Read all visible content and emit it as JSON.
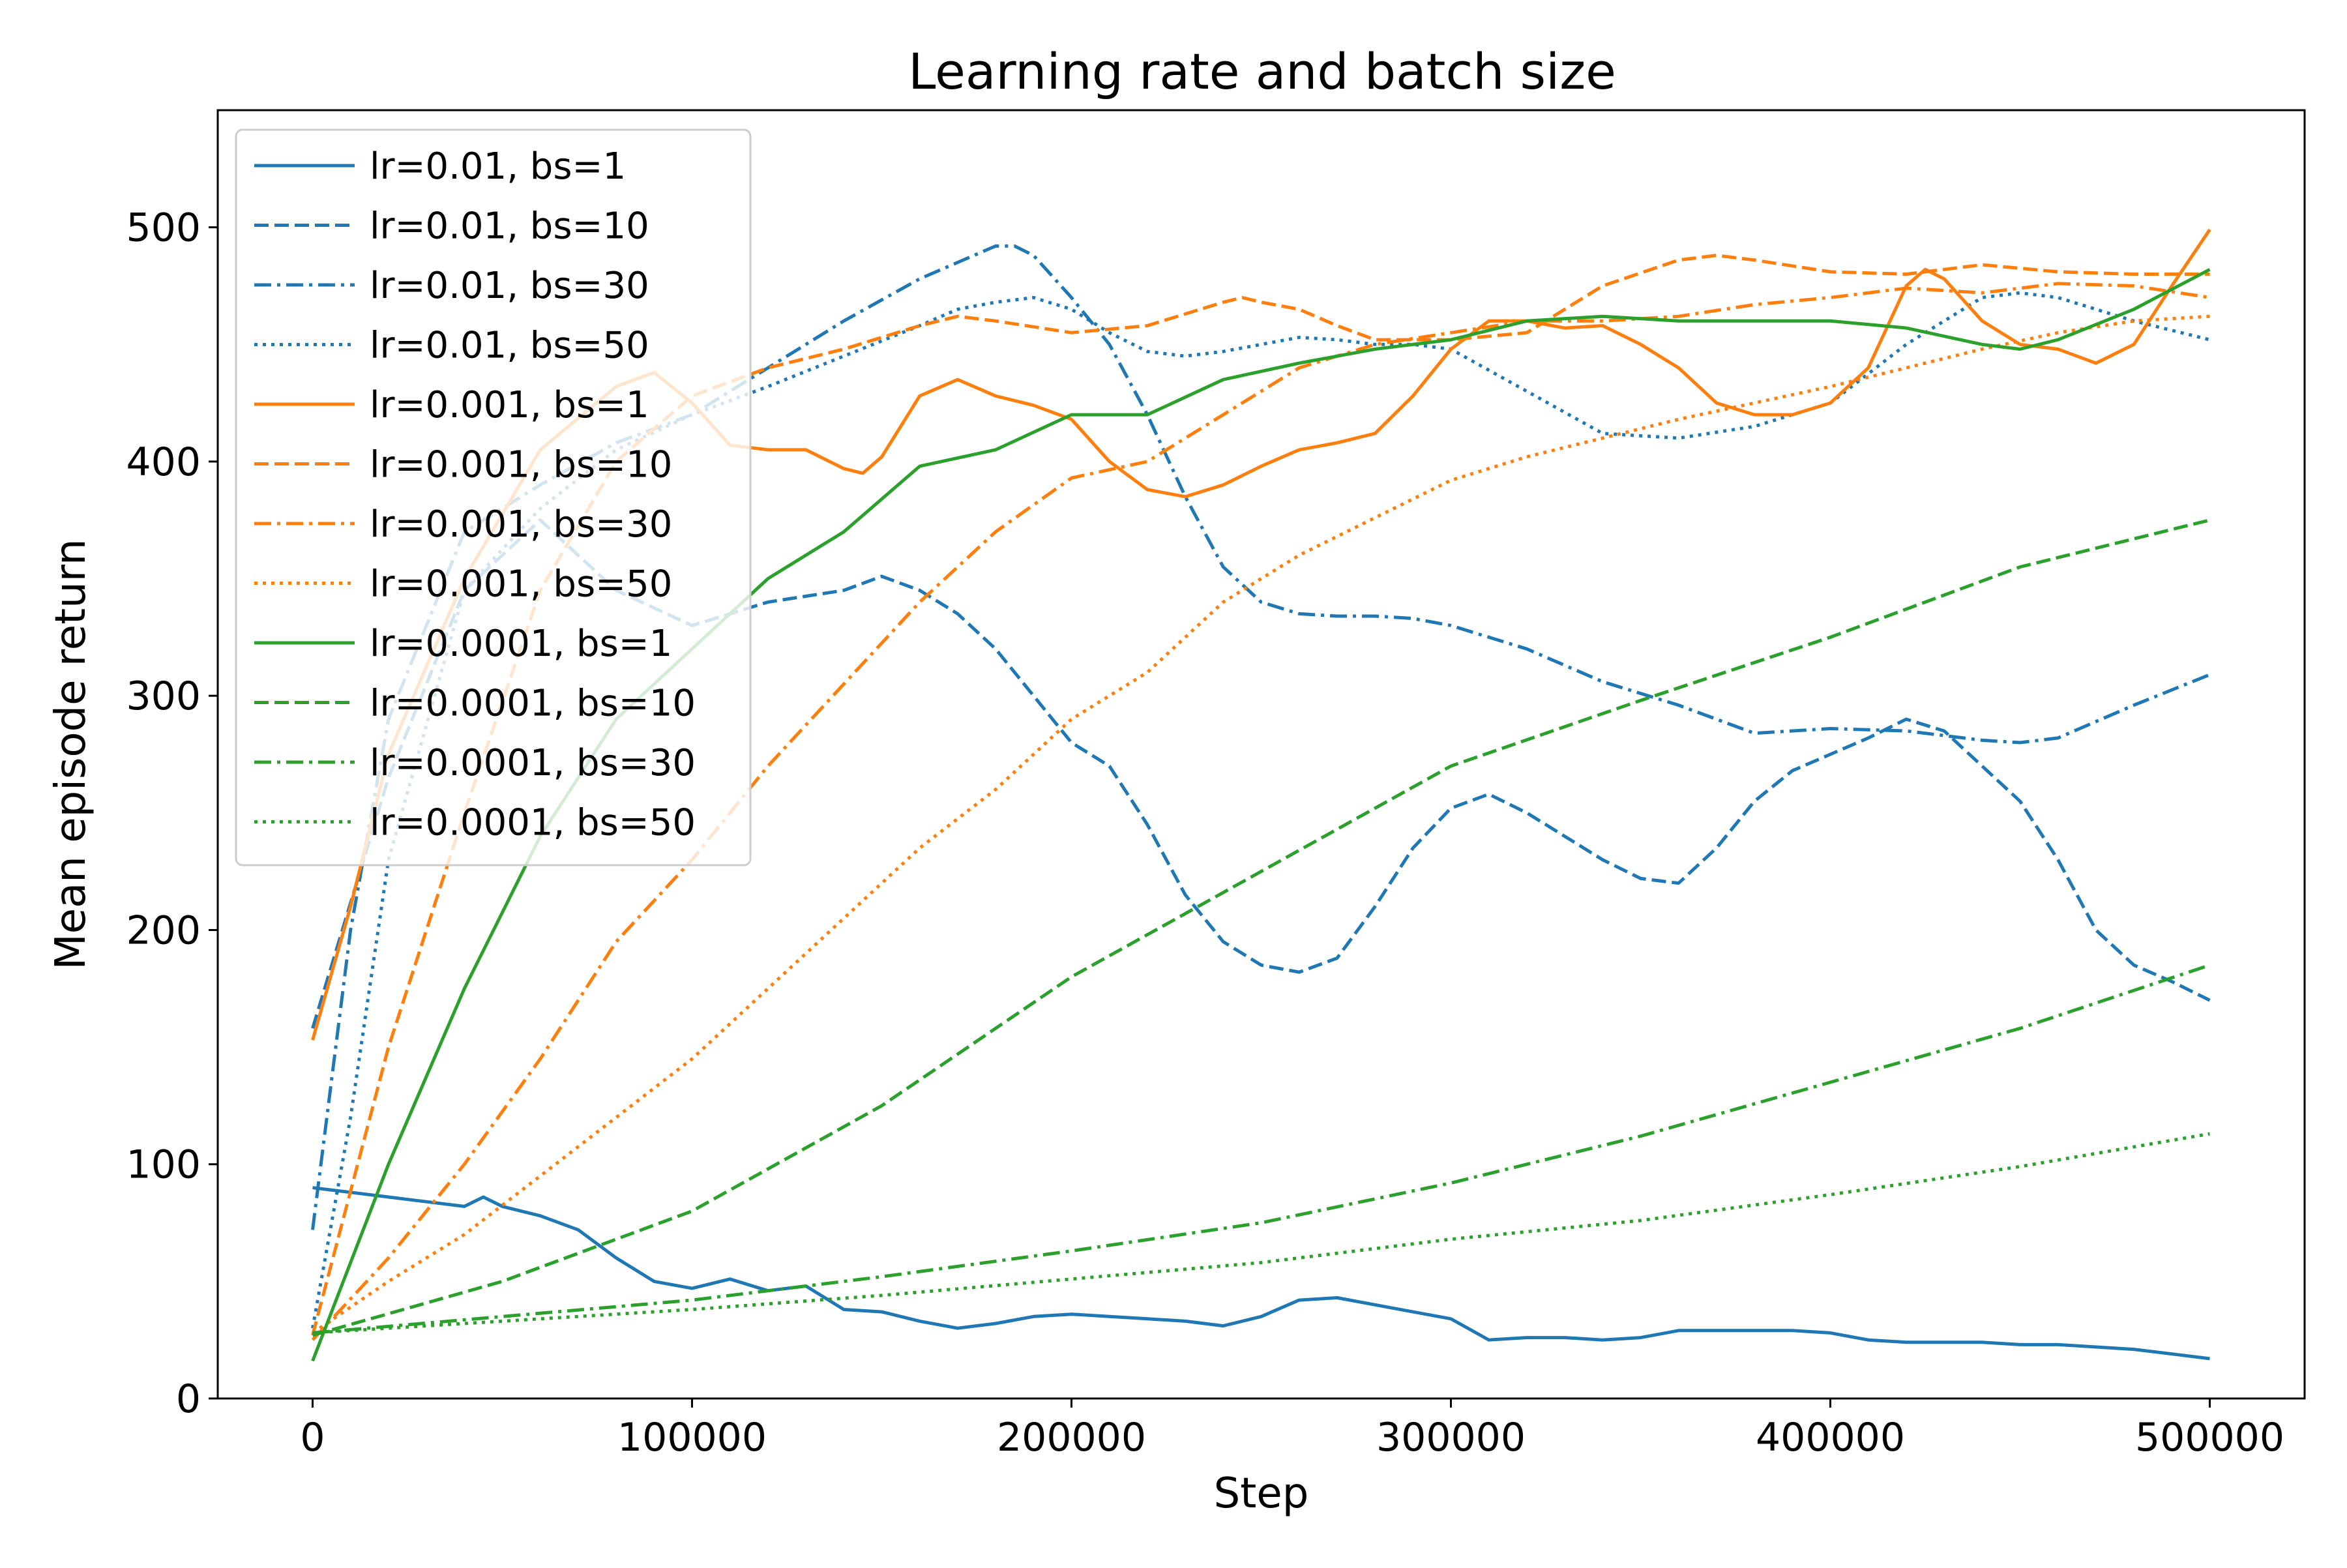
{
  "chart_data": {
    "type": "line",
    "title": "Learning rate and batch size",
    "xlabel": "Step",
    "ylabel": "Mean episode return",
    "xlim": [
      -25000,
      525000
    ],
    "ylim": [
      0,
      550
    ],
    "xticks": [
      0,
      100000,
      200000,
      300000,
      400000,
      500000
    ],
    "yticks": [
      0,
      100,
      200,
      300,
      400,
      500
    ],
    "xtick_labels": [
      "0",
      "100000",
      "200000",
      "300000",
      "400000",
      "500000"
    ],
    "ytick_labels": [
      "0",
      "100",
      "200",
      "300",
      "400",
      "500"
    ],
    "grid": false,
    "legend_position": "upper left",
    "series": [
      {
        "name": "lr=0.01, bs=1",
        "color": "#1f77b4",
        "style": "solid",
        "x": [
          0,
          10000,
          20000,
          30000,
          40000,
          45000,
          50000,
          60000,
          70000,
          80000,
          90000,
          100000,
          110000,
          120000,
          130000,
          140000,
          150000,
          160000,
          170000,
          180000,
          190000,
          200000,
          210000,
          220000,
          230000,
          240000,
          250000,
          260000,
          270000,
          280000,
          290000,
          300000,
          310000,
          320000,
          330000,
          340000,
          350000,
          360000,
          370000,
          380000,
          390000,
          400000,
          410000,
          420000,
          430000,
          440000,
          450000,
          460000,
          470000,
          480000,
          490000,
          500000
        ],
        "y": [
          90,
          88,
          86,
          84,
          82,
          86,
          82,
          78,
          72,
          60,
          50,
          47,
          51,
          46,
          48,
          38,
          37,
          33,
          30,
          32,
          35,
          36,
          35,
          34,
          33,
          31,
          35,
          42,
          43,
          40,
          37,
          34,
          25,
          26,
          26,
          25,
          26,
          29,
          29,
          29,
          29,
          28,
          25,
          24,
          24,
          24,
          23,
          23,
          22,
          21,
          19,
          17
        ]
      },
      {
        "name": "lr=0.01, bs=10",
        "color": "#1f77b4",
        "style": "dashed",
        "x": [
          0,
          20000,
          40000,
          60000,
          80000,
          100000,
          120000,
          140000,
          150000,
          160000,
          170000,
          180000,
          190000,
          200000,
          210000,
          220000,
          230000,
          240000,
          250000,
          260000,
          270000,
          280000,
          290000,
          300000,
          310000,
          320000,
          330000,
          340000,
          350000,
          360000,
          370000,
          380000,
          390000,
          400000,
          410000,
          420000,
          430000,
          440000,
          450000,
          460000,
          470000,
          480000,
          490000,
          500000
        ],
        "y": [
          158,
          265,
          345,
          375,
          345,
          330,
          340,
          345,
          351,
          345,
          335,
          320,
          300,
          280,
          270,
          245,
          215,
          195,
          185,
          182,
          188,
          210,
          235,
          252,
          258,
          250,
          240,
          230,
          222,
          220,
          235,
          255,
          268,
          275,
          282,
          290,
          285,
          270,
          255,
          230,
          200,
          185,
          178,
          170
        ]
      },
      {
        "name": "lr=0.01, bs=30",
        "color": "#1f77b4",
        "style": "dashdot",
        "x": [
          0,
          10000,
          20000,
          40000,
          60000,
          80000,
          100000,
          120000,
          140000,
          160000,
          170000,
          180000,
          185000,
          190000,
          200000,
          210000,
          220000,
          230000,
          240000,
          250000,
          260000,
          270000,
          280000,
          290000,
          300000,
          320000,
          340000,
          360000,
          380000,
          400000,
          420000,
          440000,
          450000,
          460000,
          480000,
          500000
        ],
        "y": [
          72,
          200,
          290,
          370,
          390,
          408,
          420,
          440,
          460,
          478,
          485,
          492,
          492,
          488,
          470,
          450,
          420,
          385,
          355,
          340,
          335,
          334,
          334,
          333,
          330,
          320,
          306,
          296,
          284,
          286,
          285,
          281,
          280,
          282,
          296,
          309
        ]
      },
      {
        "name": "lr=0.01, bs=50",
        "color": "#1f77b4",
        "style": "dotted",
        "x": [
          0,
          10000,
          20000,
          40000,
          60000,
          80000,
          100000,
          120000,
          140000,
          160000,
          170000,
          180000,
          190000,
          200000,
          210000,
          220000,
          230000,
          240000,
          250000,
          260000,
          270000,
          280000,
          290000,
          300000,
          320000,
          340000,
          360000,
          380000,
          400000,
          420000,
          440000,
          450000,
          460000,
          480000,
          500000
        ],
        "y": [
          30,
          120,
          230,
          345,
          380,
          405,
          420,
          432,
          445,
          458,
          465,
          468,
          470,
          465,
          455,
          447,
          445,
          447,
          450,
          453,
          452,
          450,
          450,
          448,
          430,
          412,
          410,
          415,
          425,
          450,
          470,
          472,
          470,
          460,
          452
        ]
      },
      {
        "name": "lr=0.001, bs=1",
        "color": "#ff7f0e",
        "style": "solid",
        "x": [
          0,
          10000,
          20000,
          40000,
          60000,
          80000,
          90000,
          100000,
          110000,
          120000,
          130000,
          140000,
          145000,
          150000,
          160000,
          170000,
          180000,
          190000,
          200000,
          210000,
          220000,
          230000,
          240000,
          250000,
          260000,
          270000,
          280000,
          290000,
          300000,
          310000,
          320000,
          330000,
          340000,
          350000,
          360000,
          370000,
          380000,
          390000,
          400000,
          410000,
          420000,
          425000,
          430000,
          440000,
          450000,
          460000,
          470000,
          480000,
          490000,
          500000
        ],
        "y": [
          153,
          210,
          275,
          350,
          405,
          432,
          438,
          425,
          407,
          405,
          405,
          397,
          395,
          402,
          428,
          435,
          428,
          424,
          418,
          400,
          388,
          385,
          390,
          398,
          405,
          408,
          412,
          428,
          448,
          460,
          460,
          457,
          458,
          450,
          440,
          425,
          420,
          420,
          425,
          440,
          475,
          482,
          478,
          460,
          450,
          448,
          442,
          450,
          475,
          499
        ]
      },
      {
        "name": "lr=0.001, bs=10",
        "color": "#ff7f0e",
        "style": "dashed",
        "x": [
          0,
          20000,
          40000,
          60000,
          80000,
          100000,
          120000,
          140000,
          160000,
          170000,
          180000,
          200000,
          220000,
          240000,
          245000,
          250000,
          260000,
          270000,
          280000,
          300000,
          320000,
          340000,
          360000,
          370000,
          380000,
          400000,
          420000,
          440000,
          460000,
          480000,
          500000
        ],
        "y": [
          27,
          150,
          250,
          345,
          400,
          428,
          440,
          448,
          458,
          462,
          460,
          455,
          458,
          468,
          470,
          468,
          465,
          458,
          452,
          452,
          455,
          475,
          486,
          488,
          486,
          481,
          480,
          484,
          481,
          480,
          480
        ]
      },
      {
        "name": "lr=0.001, bs=30",
        "color": "#ff7f0e",
        "style": "dashdot",
        "x": [
          0,
          20000,
          40000,
          60000,
          80000,
          100000,
          120000,
          140000,
          160000,
          180000,
          200000,
          220000,
          240000,
          260000,
          280000,
          300000,
          320000,
          340000,
          360000,
          380000,
          400000,
          420000,
          440000,
          460000,
          480000,
          500000
        ],
        "y": [
          25,
          60,
          100,
          145,
          195,
          230,
          270,
          305,
          340,
          370,
          393,
          400,
          420,
          440,
          450,
          455,
          460,
          460,
          462,
          467,
          470,
          474,
          472,
          476,
          475,
          470
        ]
      },
      {
        "name": "lr=0.001, bs=50",
        "color": "#ff7f0e",
        "style": "dotted",
        "x": [
          0,
          20000,
          40000,
          60000,
          80000,
          100000,
          120000,
          140000,
          160000,
          180000,
          200000,
          220000,
          240000,
          260000,
          280000,
          300000,
          320000,
          340000,
          360000,
          380000,
          400000,
          420000,
          440000,
          460000,
          480000,
          500000
        ],
        "y": [
          28,
          50,
          70,
          95,
          120,
          145,
          175,
          205,
          235,
          260,
          290,
          310,
          340,
          360,
          376,
          392,
          402,
          410,
          418,
          425,
          432,
          440,
          448,
          455,
          460,
          462
        ]
      },
      {
        "name": "lr=0.0001, bs=1",
        "color": "#2ca02c",
        "style": "solid",
        "x": [
          0,
          20000,
          40000,
          60000,
          80000,
          100000,
          120000,
          140000,
          160000,
          180000,
          200000,
          220000,
          240000,
          260000,
          280000,
          300000,
          320000,
          340000,
          360000,
          380000,
          400000,
          420000,
          440000,
          450000,
          460000,
          480000,
          500000
        ],
        "y": [
          16,
          100,
          175,
          240,
          290,
          320,
          350,
          370,
          398,
          405,
          420,
          420,
          435,
          442,
          448,
          452,
          460,
          462,
          460,
          460,
          460,
          457,
          450,
          448,
          452,
          465,
          482
        ]
      },
      {
        "name": "lr=0.0001, bs=10",
        "color": "#2ca02c",
        "style": "dashed",
        "x": [
          0,
          50000,
          100000,
          150000,
          200000,
          250000,
          300000,
          350000,
          400000,
          450000,
          500000
        ],
        "y": [
          27,
          50,
          80,
          125,
          180,
          225,
          270,
          298,
          325,
          355,
          375
        ]
      },
      {
        "name": "lr=0.0001, bs=30",
        "color": "#2ca02c",
        "style": "dashdot",
        "x": [
          0,
          50000,
          100000,
          150000,
          200000,
          250000,
          300000,
          350000,
          400000,
          450000,
          500000
        ],
        "y": [
          28,
          35,
          42,
          52,
          63,
          75,
          92,
          112,
          135,
          158,
          185
        ]
      },
      {
        "name": "lr=0.0001, bs=50",
        "color": "#2ca02c",
        "style": "dotted",
        "x": [
          0,
          50000,
          100000,
          150000,
          200000,
          250000,
          300000,
          350000,
          400000,
          450000,
          500000
        ],
        "y": [
          28,
          33,
          38,
          44,
          51,
          58,
          68,
          76,
          87,
          99,
          113
        ]
      }
    ]
  }
}
